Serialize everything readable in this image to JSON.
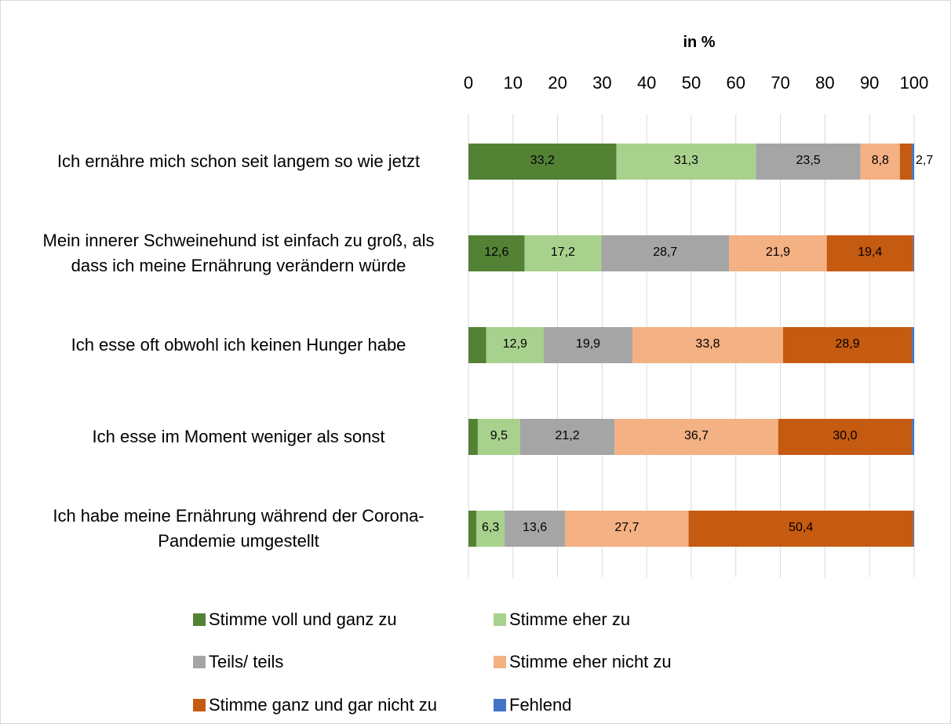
{
  "chart_data": {
    "type": "bar",
    "orientation": "horizontal",
    "stacked": true,
    "x_label": "in %",
    "categories": [
      "Ich ernähre mich schon seit langem so wie jetzt",
      "Mein innerer Schweinehund ist einfach zu groß, als dass ich meine Ernährung verändern würde",
      "Ich esse oft obwohl ich keinen Hunger habe",
      "Ich esse im Moment weniger als sonst",
      "Ich habe meine Ernährung während der Corona-Pandemie umgestellt"
    ],
    "series": [
      {
        "name": "Stimme voll und ganz zu",
        "color": "#548235",
        "values": [
          33.2,
          12.6,
          4.0,
          2.1,
          1.8
        ],
        "value_labels": [
          "33,2",
          "12,6",
          null,
          null,
          null
        ]
      },
      {
        "name": "Stimme eher zu",
        "color": "#a9d18e",
        "values": [
          31.3,
          17.2,
          12.9,
          9.5,
          6.3
        ],
        "value_labels": [
          "31,3",
          "17,2",
          "12,9",
          "9,5",
          "6,3"
        ]
      },
      {
        "name": "Teils/ teils",
        "color": "#a5a5a5",
        "values": [
          23.5,
          28.7,
          19.9,
          21.2,
          13.6
        ],
        "value_labels": [
          "23,5",
          "28,7",
          "19,9",
          "21,2",
          "13,6"
        ]
      },
      {
        "name": "Stimme eher nicht zu",
        "color": "#f4b183",
        "values": [
          8.8,
          21.9,
          33.8,
          36.7,
          27.7
        ],
        "value_labels": [
          "8,8",
          "21,9",
          "33,8",
          "36,7",
          "27,7"
        ]
      },
      {
        "name": "Stimme ganz und gar nicht zu",
        "color": "#c55a11",
        "values": [
          2.7,
          19.4,
          28.9,
          30.0,
          50.4
        ],
        "value_labels": [
          "2,7",
          "19,4",
          "28,9",
          "30,0",
          "50,4"
        ]
      },
      {
        "name": "Fehlend",
        "color": "#4472c4",
        "values": [
          0.5,
          0.2,
          0.5,
          0.5,
          0.2
        ],
        "value_labels": [
          null,
          null,
          null,
          null,
          null
        ]
      }
    ],
    "xlim": [
      0,
      100
    ],
    "xticks": [
      0,
      10,
      20,
      30,
      40,
      50,
      60,
      70,
      80,
      90,
      100
    ],
    "grid": true,
    "legend": "bottom"
  }
}
